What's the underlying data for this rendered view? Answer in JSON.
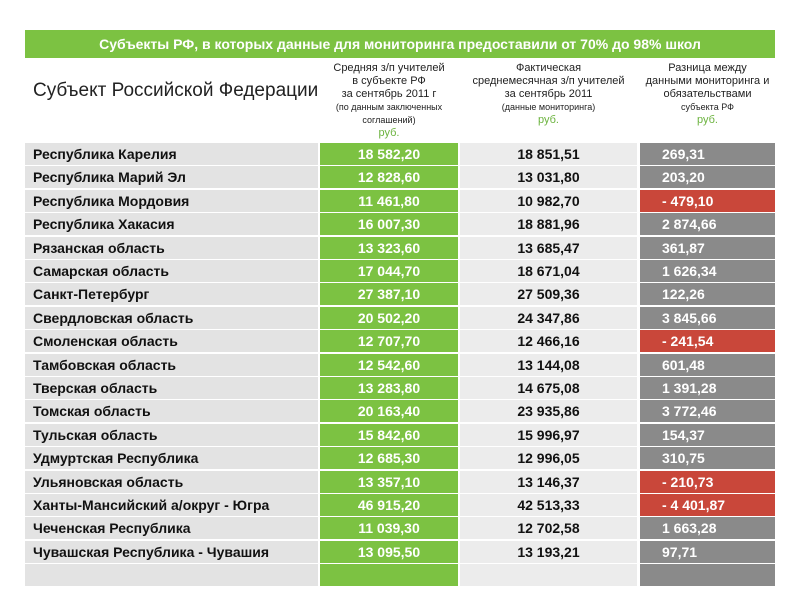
{
  "title": "Субъекты РФ, в которых данные для мониторинга предоставили от 70% до 98% школ",
  "table": {
    "headers": [
      {
        "lines": [
          "Субъект Российской Федерации"
        ]
      },
      {
        "lines": [
          "Средняя з/п учителей",
          "в субъекте РФ",
          "за сентябрь 2011 г",
          "(по данным заключенных соглашений)"
        ],
        "unit": "руб."
      },
      {
        "lines": [
          "Фактическая",
          "среднемесячная з/п учителей",
          "за сентябрь 2011",
          "(данные мониторинга)"
        ],
        "unit": "руб."
      },
      {
        "lines": [
          "Разница между",
          "данными мониторинга и",
          "обязательствами",
          "субъекта РФ"
        ],
        "unit": "руб."
      }
    ],
    "rows": [
      [
        "Республика Карелия",
        "18 582,20",
        "18 851,51",
        "269,31"
      ],
      [
        "Республика Марий Эл",
        "12 828,60",
        "13 031,80",
        "203,20"
      ],
      [
        "Республика Мордовия",
        "11 461,80",
        "10 982,70",
        "- 479,10"
      ],
      [
        "Республика Хакасия",
        "16 007,30",
        "18 881,96",
        "2 874,66"
      ],
      [
        "Рязанская область",
        "13 323,60",
        "13 685,47",
        "361,87"
      ],
      [
        "Самарская область",
        "17 044,70",
        "18 671,04",
        "1 626,34"
      ],
      [
        "Санкт-Петербург",
        "27 387,10",
        "27 509,36",
        "122,26"
      ],
      [
        "Свердловская область",
        "20 502,20",
        "24 347,86",
        "3 845,66"
      ],
      [
        "Смоленская область",
        "12 707,70",
        "12 466,16",
        "- 241,54"
      ],
      [
        "Тамбовская область",
        "12 542,60",
        "13 144,08",
        "601,48"
      ],
      [
        "Тверская область",
        "13 283,80",
        "14 675,08",
        "1 391,28"
      ],
      [
        "Томская область",
        "20 163,40",
        "23 935,86",
        "3 772,46"
      ],
      [
        "Тульская область",
        "15 842,60",
        "15 996,97",
        "154,37"
      ],
      [
        "Удмуртская Республика",
        "12 685,30",
        "12 996,05",
        "310,75"
      ],
      [
        "Ульяновская область",
        "13 357,10",
        "13 146,37",
        "- 210,73"
      ],
      [
        "Ханты-Мансийский а/округ - Югра",
        "46 915,20",
        "42 513,33",
        "- 4 401,87"
      ],
      [
        "Чеченская Республика",
        "11 039,30",
        "12 702,58",
        "1 663,28"
      ],
      [
        "Чувашская Республика - Чувашия",
        "13 095,50",
        "13 193,21",
        "97,71"
      ]
    ]
  }
}
